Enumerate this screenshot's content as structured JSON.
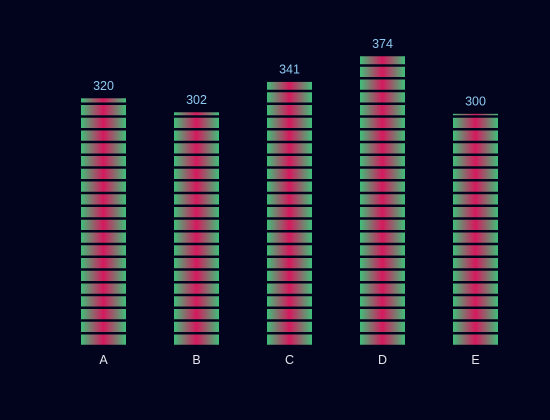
{
  "chart_data": {
    "type": "bar",
    "categories": [
      "A",
      "B",
      "C",
      "D",
      "E"
    ],
    "values": [
      320,
      302,
      341,
      374,
      300
    ],
    "title": "",
    "xlabel": "",
    "ylabel": "",
    "ylim": [
      0,
      374
    ],
    "grid": false,
    "legend": "none",
    "bar_style": "stacked segments with horizontal pink-to-green gradient",
    "colors": {
      "background": "#02031c",
      "segment_edge": "#3ec07a",
      "segment_center": "#d6185e",
      "value_label": "#8ec9f2",
      "category_label": "#e6e6ee"
    }
  }
}
